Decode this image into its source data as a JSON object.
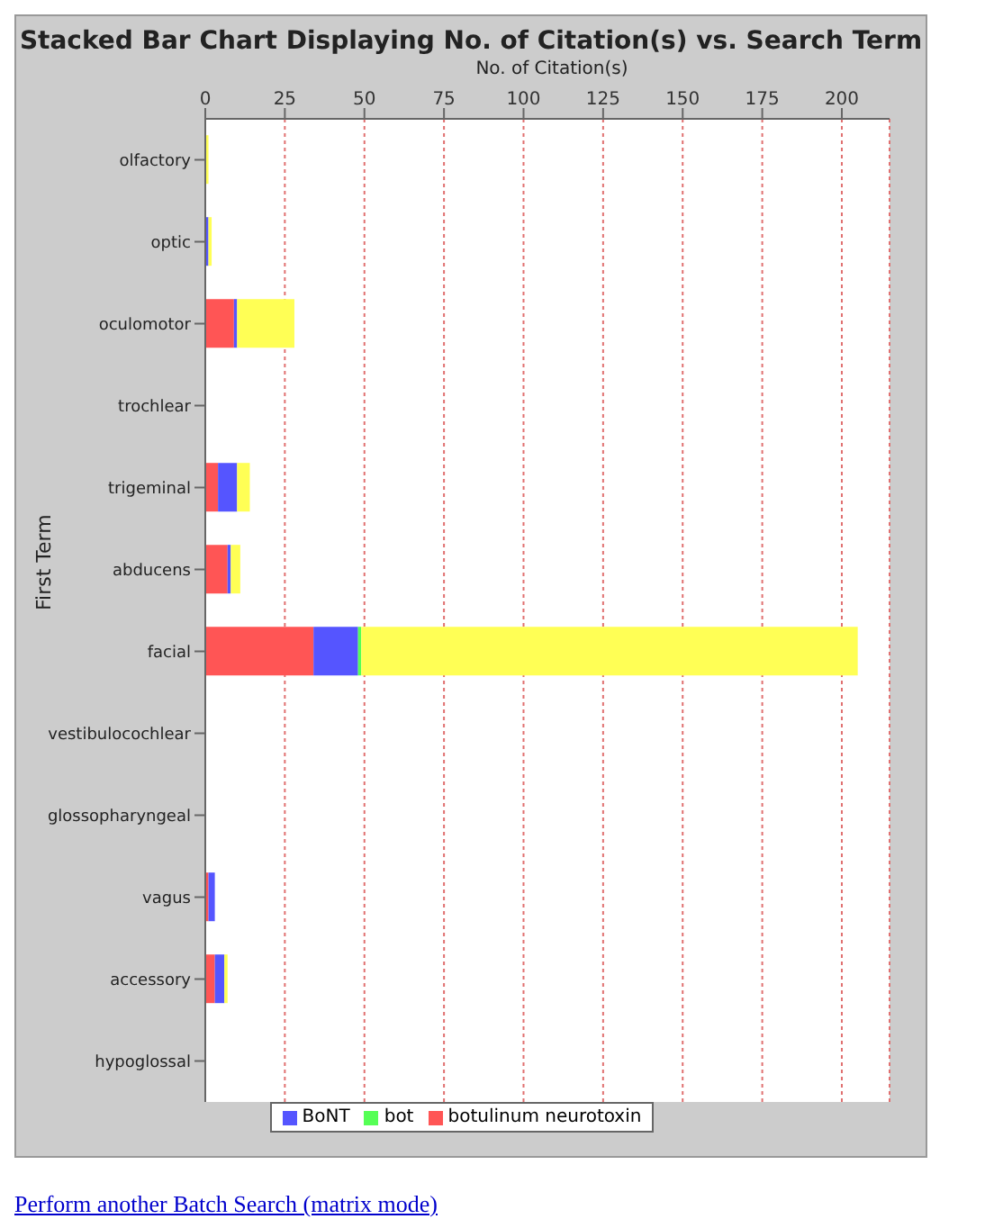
{
  "chart_data": {
    "type": "bar",
    "orientation": "horizontal",
    "stacked": true,
    "title": "Stacked Bar Chart Displaying No. of Citation(s) vs. Search Term",
    "xlabel": "No. of Citation(s)",
    "ylabel": "First Term",
    "categories": [
      "olfactory",
      "optic",
      "oculomotor",
      "trochlear",
      "trigeminal",
      "abducens",
      "facial",
      "vestibulocochlear",
      "glossopharyngeal",
      "vagus",
      "accessory",
      "hypoglossal"
    ],
    "series": [
      {
        "name": "botulinum neurotoxin",
        "color": "#ff5555",
        "values": [
          0,
          0,
          9,
          0,
          4,
          7,
          34,
          0,
          0,
          1,
          3,
          0
        ]
      },
      {
        "name": "BoNT",
        "color": "#5555ff",
        "values": [
          0,
          1,
          1,
          0,
          6,
          1,
          14,
          0,
          0,
          2,
          3,
          0
        ]
      },
      {
        "name": "bot",
        "color": "#55ff55",
        "values": [
          0,
          0,
          0,
          0,
          0,
          0,
          1,
          0,
          0,
          0,
          0,
          0
        ]
      },
      {
        "color": "#ffff55",
        "values": [
          1,
          1,
          18,
          0,
          4,
          3,
          156,
          0,
          0,
          0,
          1,
          0
        ]
      }
    ],
    "xlim": [
      0,
      215
    ],
    "xticks": [
      0,
      25,
      50,
      75,
      100,
      125,
      150,
      175,
      200
    ],
    "grid": "x",
    "legend": "bottom",
    "annotations": [
      "Perform another Batch Search (matrix mode)"
    ]
  }
}
